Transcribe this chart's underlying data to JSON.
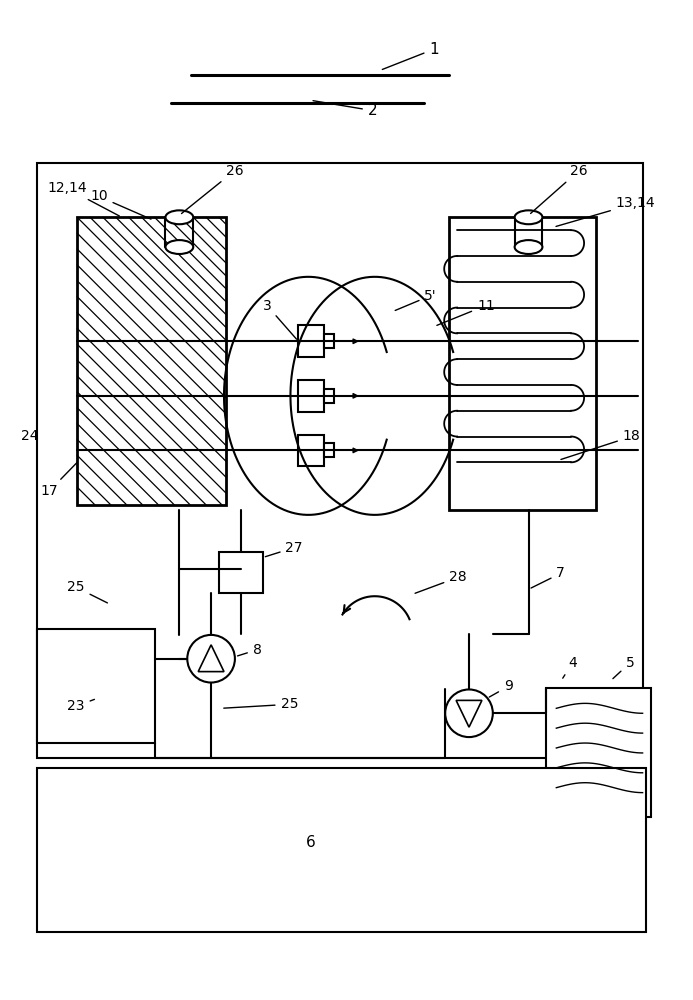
{
  "bg_color": "#ffffff",
  "line_color": "#000000",
  "fig_width": 6.93,
  "fig_height": 10.0,
  "dpi": 100
}
